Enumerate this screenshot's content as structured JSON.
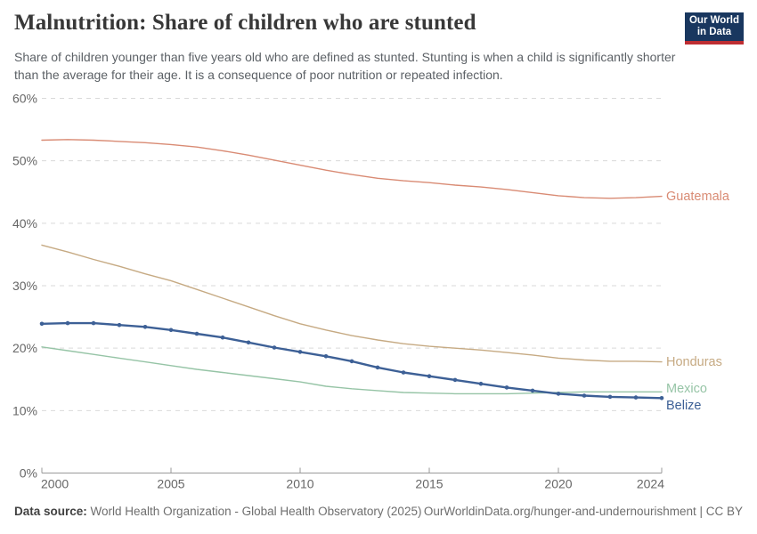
{
  "header": {
    "title": "Malnutrition: Share of children who are stunted",
    "subtitle": "Share of children younger than five years old who are defined as stunted. Stunting is when a child is significantly shorter than the average for their age. It is a consequence of poor nutrition or repeated infection.",
    "logo": {
      "line1": "Our World",
      "line2": "in Data",
      "bg": "#19375f",
      "accent": "#be2d32"
    }
  },
  "chart_data": {
    "type": "line",
    "title": "Malnutrition: Share of children who are stunted",
    "xlabel": "",
    "ylabel": "",
    "x": [
      2000,
      2001,
      2002,
      2003,
      2004,
      2005,
      2006,
      2007,
      2008,
      2009,
      2010,
      2011,
      2012,
      2013,
      2014,
      2015,
      2016,
      2017,
      2018,
      2019,
      2020,
      2021,
      2022,
      2023,
      2024
    ],
    "series": [
      {
        "name": "Guatemala",
        "color": "#d98b74",
        "markers": false,
        "label_dy": 0,
        "values": [
          53.3,
          53.4,
          53.3,
          53.1,
          52.9,
          52.6,
          52.2,
          51.6,
          50.9,
          50.1,
          49.3,
          48.5,
          47.8,
          47.2,
          46.8,
          46.5,
          46.1,
          45.8,
          45.4,
          44.9,
          44.4,
          44.1,
          44.0,
          44.1,
          44.3
        ]
      },
      {
        "name": "Honduras",
        "color": "#c6aa83",
        "markers": false,
        "label_dy": 0,
        "values": [
          36.5,
          35.4,
          34.2,
          33.1,
          31.9,
          30.8,
          29.4,
          28.0,
          26.6,
          25.2,
          23.9,
          22.9,
          22.0,
          21.3,
          20.7,
          20.3,
          20.0,
          19.7,
          19.3,
          18.9,
          18.4,
          18.1,
          17.9,
          17.9,
          17.8
        ]
      },
      {
        "name": "Mexico",
        "color": "#96c4a6",
        "markers": false,
        "label_dy": -4,
        "values": [
          20.2,
          19.6,
          19.0,
          18.4,
          17.8,
          17.2,
          16.6,
          16.1,
          15.6,
          15.1,
          14.6,
          13.9,
          13.5,
          13.2,
          12.9,
          12.8,
          12.7,
          12.7,
          12.7,
          12.8,
          12.9,
          13.0,
          13.0,
          13.0,
          13.0
        ]
      },
      {
        "name": "Belize",
        "color": "#3d6096",
        "markers": true,
        "label_dy": 8,
        "values": [
          23.9,
          24.0,
          24.0,
          23.7,
          23.4,
          22.9,
          22.3,
          21.7,
          20.9,
          20.1,
          19.4,
          18.7,
          17.9,
          16.9,
          16.1,
          15.5,
          14.9,
          14.3,
          13.7,
          13.2,
          12.7,
          12.4,
          12.2,
          12.1,
          12.0
        ]
      }
    ],
    "ylim": [
      0,
      60
    ],
    "yticks": [
      0,
      10,
      20,
      30,
      40,
      50,
      60
    ],
    "ytick_suffix": "%",
    "xticks": [
      2000,
      2005,
      2010,
      2015,
      2020,
      2024
    ],
    "grid": "horizontal-dashed",
    "legend_position": "line-end-labels-right",
    "grid_color": "#d9d9d9",
    "axis_color": "#9a9a9a",
    "tick_label_color": "#666666"
  },
  "footer": {
    "source_label": "Data source:",
    "source_text": " World Health Organization - Global Health Observatory (2025)",
    "attribution": "OurWorldinData.org/hunger-and-undernourishment | CC BY"
  }
}
